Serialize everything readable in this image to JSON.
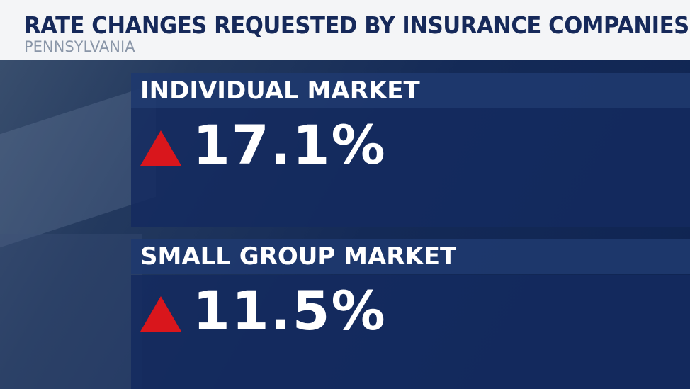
{
  "header": {
    "title": "RATE CHANGES REQUESTED BY INSURANCE COMPANIES",
    "subtitle": "PENNSYLVANIA"
  },
  "panels": [
    {
      "label": "INDIVIDUAL MARKET",
      "value": "17.1%"
    },
    {
      "label": "SMALL GROUP MARKET",
      "value": "11.5%"
    }
  ]
}
